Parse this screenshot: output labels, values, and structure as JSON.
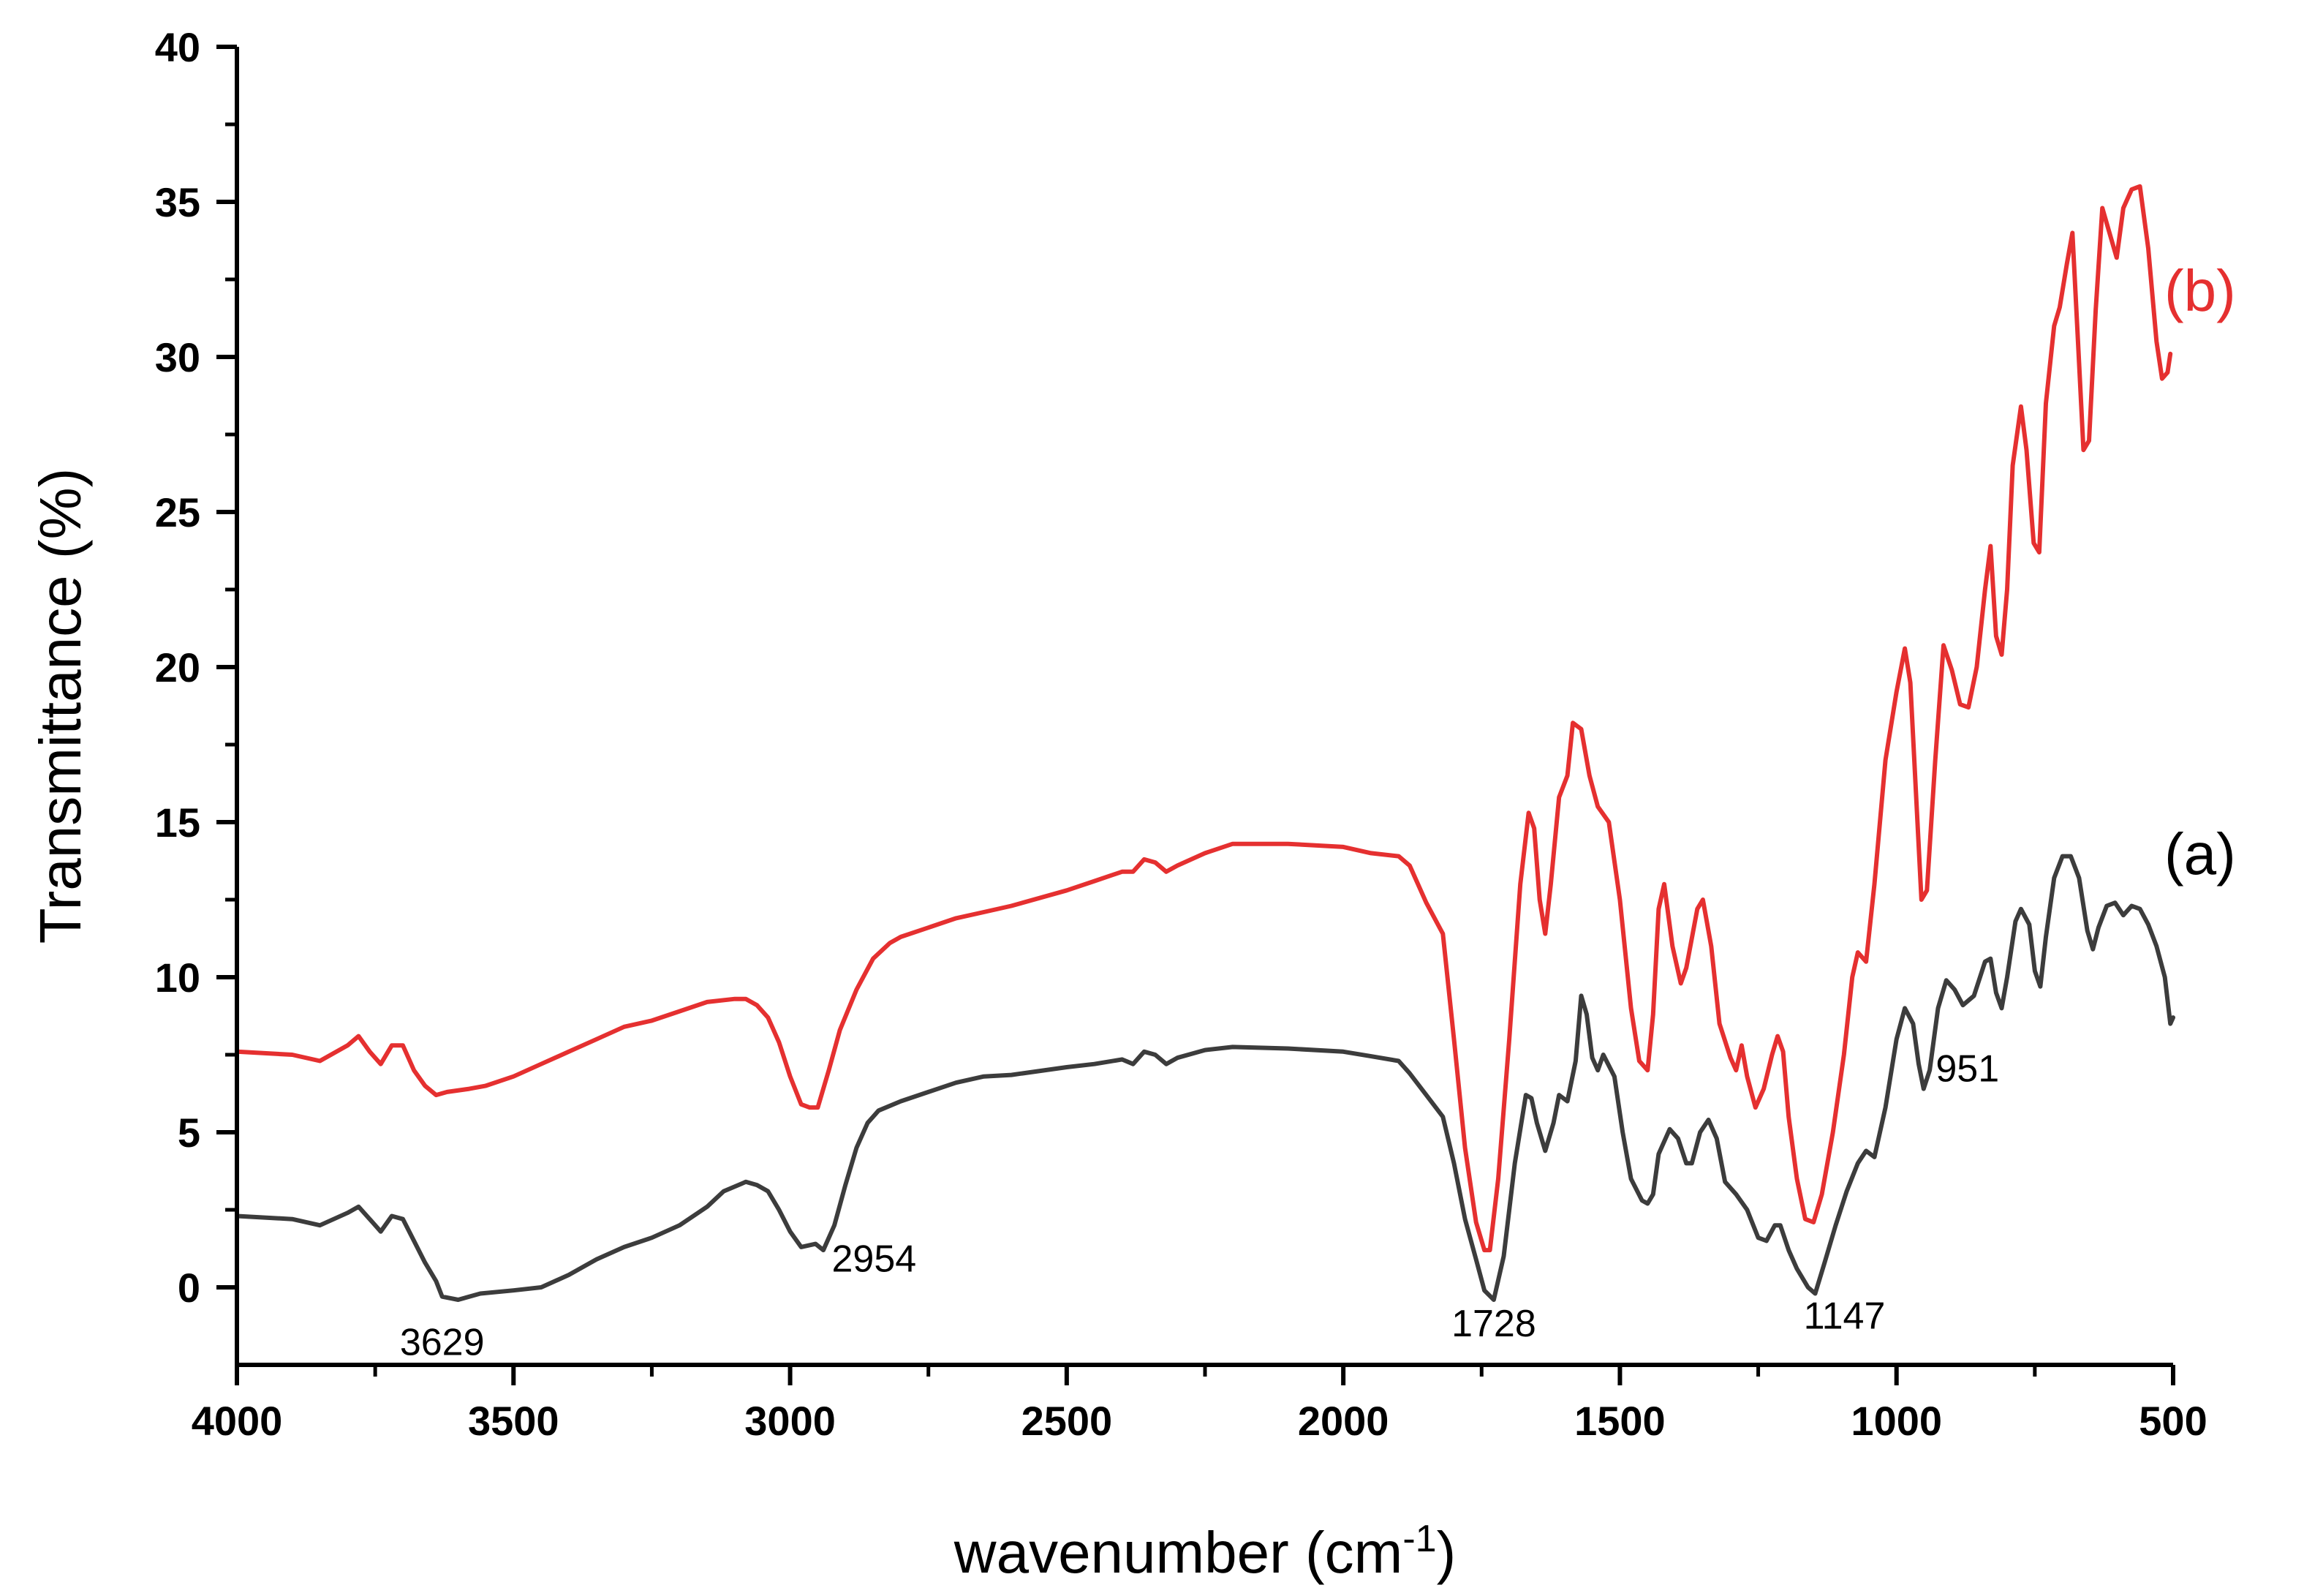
{
  "chart_data": {
    "type": "line",
    "title": "",
    "xlabel": "wavenumber (cm",
    "xlabel_sup": "-1",
    "xlabel_close": ")",
    "ylabel": "Transmittance (%)",
    "xlim": [
      4000,
      500
    ],
    "ylim": [
      -2.5,
      40
    ],
    "xticks": [
      4000,
      3500,
      3000,
      2500,
      2000,
      1500,
      1000,
      500
    ],
    "yticks": [
      0,
      5,
      10,
      15,
      20,
      25,
      30,
      35,
      40
    ],
    "grid": false,
    "series": [
      {
        "name": "(a)",
        "color": "#3c3c3c",
        "points": [
          [
            4000,
            2.3
          ],
          [
            3900,
            2.2
          ],
          [
            3850,
            2.0
          ],
          [
            3800,
            2.4
          ],
          [
            3780,
            2.6
          ],
          [
            3760,
            2.2
          ],
          [
            3740,
            1.8
          ],
          [
            3720,
            2.3
          ],
          [
            3700,
            2.2
          ],
          [
            3680,
            1.5
          ],
          [
            3660,
            0.8
          ],
          [
            3640,
            0.2
          ],
          [
            3629,
            -0.3
          ],
          [
            3600,
            -0.4
          ],
          [
            3560,
            -0.2
          ],
          [
            3500,
            -0.1
          ],
          [
            3450,
            0.0
          ],
          [
            3400,
            0.4
          ],
          [
            3350,
            0.9
          ],
          [
            3300,
            1.3
          ],
          [
            3250,
            1.6
          ],
          [
            3200,
            2.0
          ],
          [
            3150,
            2.6
          ],
          [
            3120,
            3.1
          ],
          [
            3080,
            3.4
          ],
          [
            3060,
            3.3
          ],
          [
            3040,
            3.1
          ],
          [
            3020,
            2.5
          ],
          [
            3000,
            1.8
          ],
          [
            2980,
            1.3
          ],
          [
            2954,
            1.4
          ],
          [
            2940,
            1.2
          ],
          [
            2920,
            2.0
          ],
          [
            2900,
            3.3
          ],
          [
            2880,
            4.5
          ],
          [
            2860,
            5.3
          ],
          [
            2840,
            5.7
          ],
          [
            2800,
            6.0
          ],
          [
            2750,
            6.3
          ],
          [
            2700,
            6.6
          ],
          [
            2650,
            6.8
          ],
          [
            2600,
            6.85
          ],
          [
            2500,
            7.1
          ],
          [
            2450,
            7.2
          ],
          [
            2400,
            7.35
          ],
          [
            2380,
            7.2
          ],
          [
            2360,
            7.6
          ],
          [
            2340,
            7.5
          ],
          [
            2320,
            7.2
          ],
          [
            2300,
            7.4
          ],
          [
            2250,
            7.65
          ],
          [
            2200,
            7.75
          ],
          [
            2100,
            7.7
          ],
          [
            2000,
            7.6
          ],
          [
            1950,
            7.45
          ],
          [
            1900,
            7.3
          ],
          [
            1880,
            6.9
          ],
          [
            1850,
            6.2
          ],
          [
            1820,
            5.5
          ],
          [
            1800,
            4.0
          ],
          [
            1780,
            2.2
          ],
          [
            1760,
            0.9
          ],
          [
            1745,
            -0.1
          ],
          [
            1728,
            -0.4
          ],
          [
            1710,
            1.0
          ],
          [
            1690,
            4.0
          ],
          [
            1670,
            6.2
          ],
          [
            1660,
            6.1
          ],
          [
            1650,
            5.3
          ],
          [
            1635,
            4.4
          ],
          [
            1620,
            5.3
          ],
          [
            1610,
            6.2
          ],
          [
            1595,
            6.0
          ],
          [
            1580,
            7.3
          ],
          [
            1570,
            9.4
          ],
          [
            1560,
            8.8
          ],
          [
            1550,
            7.4
          ],
          [
            1540,
            7.0
          ],
          [
            1530,
            7.5
          ],
          [
            1510,
            6.8
          ],
          [
            1495,
            5.0
          ],
          [
            1480,
            3.5
          ],
          [
            1460,
            2.8
          ],
          [
            1450,
            2.7
          ],
          [
            1440,
            3.0
          ],
          [
            1430,
            4.3
          ],
          [
            1410,
            5.1
          ],
          [
            1395,
            4.8
          ],
          [
            1380,
            4.0
          ],
          [
            1370,
            4.0
          ],
          [
            1355,
            5.0
          ],
          [
            1340,
            5.4
          ],
          [
            1325,
            4.8
          ],
          [
            1310,
            3.4
          ],
          [
            1290,
            3.0
          ],
          [
            1270,
            2.5
          ],
          [
            1250,
            1.6
          ],
          [
            1235,
            1.5
          ],
          [
            1220,
            2.0
          ],
          [
            1210,
            2.0
          ],
          [
            1195,
            1.2
          ],
          [
            1180,
            0.6
          ],
          [
            1160,
            0.0
          ],
          [
            1147,
            -0.2
          ],
          [
            1130,
            0.8
          ],
          [
            1110,
            2.0
          ],
          [
            1090,
            3.1
          ],
          [
            1070,
            4.0
          ],
          [
            1055,
            4.4
          ],
          [
            1040,
            4.2
          ],
          [
            1020,
            5.8
          ],
          [
            1000,
            8.0
          ],
          [
            985,
            9.0
          ],
          [
            970,
            8.5
          ],
          [
            960,
            7.2
          ],
          [
            951,
            6.4
          ],
          [
            940,
            7.0
          ],
          [
            925,
            9.0
          ],
          [
            910,
            9.9
          ],
          [
            895,
            9.6
          ],
          [
            880,
            9.1
          ],
          [
            860,
            9.4
          ],
          [
            840,
            10.5
          ],
          [
            830,
            10.6
          ],
          [
            820,
            9.5
          ],
          [
            810,
            9.0
          ],
          [
            800,
            10.0
          ],
          [
            785,
            11.8
          ],
          [
            775,
            12.2
          ],
          [
            760,
            11.7
          ],
          [
            750,
            10.2
          ],
          [
            740,
            9.7
          ],
          [
            730,
            11.3
          ],
          [
            715,
            13.2
          ],
          [
            700,
            13.9
          ],
          [
            685,
            13.9
          ],
          [
            670,
            13.2
          ],
          [
            655,
            11.5
          ],
          [
            645,
            10.9
          ],
          [
            635,
            11.6
          ],
          [
            620,
            12.3
          ],
          [
            605,
            12.4
          ],
          [
            590,
            12.0
          ],
          [
            575,
            12.3
          ],
          [
            560,
            12.2
          ],
          [
            545,
            11.7
          ],
          [
            530,
            11.0
          ],
          [
            515,
            10.0
          ],
          [
            505,
            8.5
          ],
          [
            500,
            8.7
          ]
        ]
      },
      {
        "name": "(b)",
        "color": "#e53030",
        "points": [
          [
            4000,
            7.6
          ],
          [
            3900,
            7.5
          ],
          [
            3850,
            7.3
          ],
          [
            3800,
            7.8
          ],
          [
            3780,
            8.1
          ],
          [
            3760,
            7.6
          ],
          [
            3740,
            7.2
          ],
          [
            3720,
            7.8
          ],
          [
            3700,
            7.8
          ],
          [
            3680,
            7.0
          ],
          [
            3660,
            6.5
          ],
          [
            3640,
            6.2
          ],
          [
            3620,
            6.3
          ],
          [
            3580,
            6.4
          ],
          [
            3550,
            6.5
          ],
          [
            3500,
            6.8
          ],
          [
            3450,
            7.2
          ],
          [
            3400,
            7.6
          ],
          [
            3350,
            8.0
          ],
          [
            3300,
            8.4
          ],
          [
            3250,
            8.6
          ],
          [
            3200,
            8.9
          ],
          [
            3150,
            9.2
          ],
          [
            3100,
            9.3
          ],
          [
            3080,
            9.3
          ],
          [
            3060,
            9.1
          ],
          [
            3040,
            8.7
          ],
          [
            3020,
            7.9
          ],
          [
            3000,
            6.8
          ],
          [
            2980,
            5.9
          ],
          [
            2965,
            5.8
          ],
          [
            2950,
            5.8
          ],
          [
            2930,
            7.0
          ],
          [
            2910,
            8.3
          ],
          [
            2880,
            9.6
          ],
          [
            2850,
            10.6
          ],
          [
            2820,
            11.1
          ],
          [
            2800,
            11.3
          ],
          [
            2750,
            11.6
          ],
          [
            2700,
            11.9
          ],
          [
            2650,
            12.1
          ],
          [
            2600,
            12.3
          ],
          [
            2500,
            12.8
          ],
          [
            2450,
            13.1
          ],
          [
            2400,
            13.4
          ],
          [
            2380,
            13.4
          ],
          [
            2360,
            13.8
          ],
          [
            2340,
            13.7
          ],
          [
            2320,
            13.4
          ],
          [
            2300,
            13.6
          ],
          [
            2250,
            14.0
          ],
          [
            2200,
            14.3
          ],
          [
            2100,
            14.3
          ],
          [
            2000,
            14.2
          ],
          [
            1950,
            14.0
          ],
          [
            1900,
            13.9
          ],
          [
            1880,
            13.6
          ],
          [
            1850,
            12.4
          ],
          [
            1820,
            11.4
          ],
          [
            1800,
            8.0
          ],
          [
            1780,
            4.5
          ],
          [
            1760,
            2.1
          ],
          [
            1745,
            1.2
          ],
          [
            1735,
            1.2
          ],
          [
            1720,
            3.5
          ],
          [
            1700,
            8.0
          ],
          [
            1680,
            13.0
          ],
          [
            1665,
            15.3
          ],
          [
            1655,
            14.8
          ],
          [
            1645,
            12.5
          ],
          [
            1635,
            11.4
          ],
          [
            1625,
            13.0
          ],
          [
            1610,
            15.8
          ],
          [
            1595,
            16.5
          ],
          [
            1585,
            18.2
          ],
          [
            1570,
            18.0
          ],
          [
            1555,
            16.5
          ],
          [
            1540,
            15.5
          ],
          [
            1520,
            15.0
          ],
          [
            1500,
            12.5
          ],
          [
            1480,
            9.0
          ],
          [
            1465,
            7.3
          ],
          [
            1450,
            7.0
          ],
          [
            1440,
            8.8
          ],
          [
            1430,
            12.2
          ],
          [
            1420,
            13.0
          ],
          [
            1405,
            11.0
          ],
          [
            1390,
            9.8
          ],
          [
            1380,
            10.3
          ],
          [
            1360,
            12.2
          ],
          [
            1350,
            12.5
          ],
          [
            1335,
            11.0
          ],
          [
            1320,
            8.5
          ],
          [
            1300,
            7.4
          ],
          [
            1290,
            7.0
          ],
          [
            1280,
            7.8
          ],
          [
            1270,
            6.8
          ],
          [
            1255,
            5.8
          ],
          [
            1240,
            6.4
          ],
          [
            1225,
            7.5
          ],
          [
            1215,
            8.1
          ],
          [
            1205,
            7.6
          ],
          [
            1195,
            5.5
          ],
          [
            1180,
            3.5
          ],
          [
            1165,
            2.2
          ],
          [
            1150,
            2.1
          ],
          [
            1135,
            3.0
          ],
          [
            1115,
            5.0
          ],
          [
            1095,
            7.5
          ],
          [
            1080,
            10.0
          ],
          [
            1070,
            10.8
          ],
          [
            1055,
            10.5
          ],
          [
            1040,
            13.0
          ],
          [
            1020,
            17.0
          ],
          [
            1000,
            19.2
          ],
          [
            985,
            20.6
          ],
          [
            975,
            19.5
          ],
          [
            965,
            16.0
          ],
          [
            955,
            12.5
          ],
          [
            945,
            12.8
          ],
          [
            930,
            17.0
          ],
          [
            915,
            20.7
          ],
          [
            900,
            19.9
          ],
          [
            885,
            18.8
          ],
          [
            870,
            18.7
          ],
          [
            855,
            20.0
          ],
          [
            840,
            22.5
          ],
          [
            830,
            23.9
          ],
          [
            820,
            21.0
          ],
          [
            810,
            20.4
          ],
          [
            800,
            22.5
          ],
          [
            790,
            26.5
          ],
          [
            775,
            28.4
          ],
          [
            765,
            27.0
          ],
          [
            752,
            24.0
          ],
          [
            742,
            23.7
          ],
          [
            730,
            28.5
          ],
          [
            715,
            31.0
          ],
          [
            705,
            31.6
          ],
          [
            692,
            33.0
          ],
          [
            682,
            34.0
          ],
          [
            672,
            30.5
          ],
          [
            662,
            27.0
          ],
          [
            652,
            27.3
          ],
          [
            640,
            31.5
          ],
          [
            628,
            34.8
          ],
          [
            615,
            34.0
          ],
          [
            602,
            33.2
          ],
          [
            590,
            34.8
          ],
          [
            575,
            35.4
          ],
          [
            560,
            35.5
          ],
          [
            545,
            33.5
          ],
          [
            530,
            30.5
          ],
          [
            520,
            29.3
          ],
          [
            510,
            29.5
          ],
          [
            505,
            30.1
          ]
        ]
      }
    ],
    "annotations": [
      {
        "text": "3629",
        "x": 3629,
        "y": -0.3
      },
      {
        "text": "2954",
        "x": 2954,
        "y": 1.4
      },
      {
        "text": "1728",
        "x": 1728,
        "y": -0.4
      },
      {
        "text": "1147",
        "x": 1147,
        "y": -0.2
      },
      {
        "text": "951",
        "x": 951,
        "y": 6.4
      }
    ],
    "series_labels": [
      {
        "text": "(a)",
        "series": 0
      },
      {
        "text": "(b)",
        "series": 1
      }
    ]
  }
}
